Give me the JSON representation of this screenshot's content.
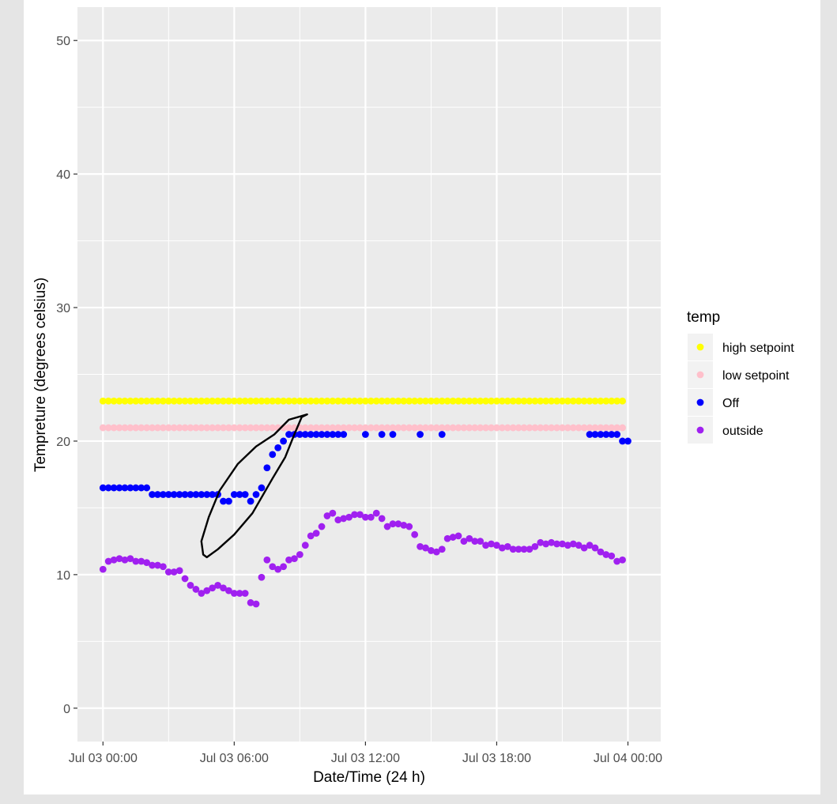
{
  "chart_data": {
    "type": "scatter",
    "title": "",
    "xlabel": "Date/Time (24 h)",
    "ylabel": "Tempreture (degrees celsius)",
    "x_axis_type": "datetime",
    "xlim": [
      "Jul 02 22:50",
      "Jul 04 01:30"
    ],
    "ylim": [
      -2.5,
      52.5
    ],
    "x_ticks": [
      {
        "at": "Jul 03 00:00",
        "label": "Jul 03 00:00"
      },
      {
        "at": "Jul 03 06:00",
        "label": "Jul 03 06:00"
      },
      {
        "at": "Jul 03 12:00",
        "label": "Jul 03 12:00"
      },
      {
        "at": "Jul 03 18:00",
        "label": "Jul 03 18:00"
      },
      {
        "at": "Jul 04 00:00",
        "label": "Jul 04 00:00"
      }
    ],
    "y_ticks": [
      0,
      10,
      20,
      30,
      40,
      50
    ],
    "grid": true,
    "legend": {
      "title": "temp",
      "position": "right"
    },
    "series": [
      {
        "name": "high setpoint",
        "color": "#ffff00",
        "constant_value": 23,
        "x_start": "Jul 03 00:00",
        "x_end": "Jul 03 23:45",
        "interval_min": 15
      },
      {
        "name": "low setpoint",
        "color": "#ffc0cb",
        "constant_value": 21,
        "x_start": "Jul 03 00:00",
        "x_end": "Jul 03 23:45",
        "interval_min": 15
      },
      {
        "name": "Off",
        "color": "#0000ff",
        "points": [
          [
            "Jul 03 00:00",
            16.5
          ],
          [
            "Jul 03 00:15",
            16.5
          ],
          [
            "Jul 03 00:30",
            16.5
          ],
          [
            "Jul 03 00:45",
            16.5
          ],
          [
            "Jul 03 01:00",
            16.5
          ],
          [
            "Jul 03 01:15",
            16.5
          ],
          [
            "Jul 03 01:30",
            16.5
          ],
          [
            "Jul 03 01:45",
            16.5
          ],
          [
            "Jul 03 02:00",
            16.5
          ],
          [
            "Jul 03 02:15",
            16.0
          ],
          [
            "Jul 03 02:30",
            16.0
          ],
          [
            "Jul 03 02:45",
            16.0
          ],
          [
            "Jul 03 03:00",
            16.0
          ],
          [
            "Jul 03 03:15",
            16.0
          ],
          [
            "Jul 03 03:30",
            16.0
          ],
          [
            "Jul 03 03:45",
            16.0
          ],
          [
            "Jul 03 04:00",
            16.0
          ],
          [
            "Jul 03 04:15",
            16.0
          ],
          [
            "Jul 03 04:30",
            16.0
          ],
          [
            "Jul 03 04:45",
            16.0
          ],
          [
            "Jul 03 05:00",
            16.0
          ],
          [
            "Jul 03 05:15",
            16.0
          ],
          [
            "Jul 03 05:30",
            15.5
          ],
          [
            "Jul 03 05:45",
            15.5
          ],
          [
            "Jul 03 06:00",
            16.0
          ],
          [
            "Jul 03 06:15",
            16.0
          ],
          [
            "Jul 03 06:30",
            16.0
          ],
          [
            "Jul 03 06:45",
            15.5
          ],
          [
            "Jul 03 07:00",
            16.0
          ],
          [
            "Jul 03 07:15",
            16.5
          ],
          [
            "Jul 03 07:30",
            18.0
          ],
          [
            "Jul 03 07:45",
            19.0
          ],
          [
            "Jul 03 08:00",
            19.5
          ],
          [
            "Jul 03 08:15",
            20.0
          ],
          [
            "Jul 03 08:30",
            20.5
          ],
          [
            "Jul 03 08:45",
            20.5
          ],
          [
            "Jul 03 09:00",
            20.5
          ],
          [
            "Jul 03 09:15",
            20.5
          ],
          [
            "Jul 03 09:30",
            20.5
          ],
          [
            "Jul 03 09:45",
            20.5
          ],
          [
            "Jul 03 10:00",
            20.5
          ],
          [
            "Jul 03 10:15",
            20.5
          ],
          [
            "Jul 03 10:30",
            20.5
          ],
          [
            "Jul 03 10:45",
            20.5
          ],
          [
            "Jul 03 11:00",
            20.5
          ],
          [
            "Jul 03 12:00",
            20.5
          ],
          [
            "Jul 03 12:45",
            20.5
          ],
          [
            "Jul 03 13:15",
            20.5
          ],
          [
            "Jul 03 14:30",
            20.5
          ],
          [
            "Jul 03 15:30",
            20.5
          ],
          [
            "Jul 03 22:15",
            20.5
          ],
          [
            "Jul 03 22:30",
            20.5
          ],
          [
            "Jul 03 22:45",
            20.5
          ],
          [
            "Jul 03 23:00",
            20.5
          ],
          [
            "Jul 03 23:15",
            20.5
          ],
          [
            "Jul 03 23:30",
            20.5
          ],
          [
            "Jul 03 23:45",
            20.0
          ],
          [
            "Jul 04 00:00",
            20.0
          ]
        ]
      },
      {
        "name": "outside",
        "color": "#a020f0",
        "points": [
          [
            "Jul 03 00:00",
            10.4
          ],
          [
            "Jul 03 00:15",
            11.0
          ],
          [
            "Jul 03 00:30",
            11.1
          ],
          [
            "Jul 03 00:45",
            11.2
          ],
          [
            "Jul 03 01:00",
            11.1
          ],
          [
            "Jul 03 01:15",
            11.2
          ],
          [
            "Jul 03 01:30",
            11.0
          ],
          [
            "Jul 03 01:45",
            11.0
          ],
          [
            "Jul 03 02:00",
            10.9
          ],
          [
            "Jul 03 02:15",
            10.7
          ],
          [
            "Jul 03 02:30",
            10.7
          ],
          [
            "Jul 03 02:45",
            10.6
          ],
          [
            "Jul 03 03:00",
            10.2
          ],
          [
            "Jul 03 03:15",
            10.2
          ],
          [
            "Jul 03 03:30",
            10.3
          ],
          [
            "Jul 03 03:45",
            9.7
          ],
          [
            "Jul 03 04:00",
            9.2
          ],
          [
            "Jul 03 04:15",
            8.9
          ],
          [
            "Jul 03 04:30",
            8.6
          ],
          [
            "Jul 03 04:45",
            8.8
          ],
          [
            "Jul 03 05:00",
            9.0
          ],
          [
            "Jul 03 05:15",
            9.2
          ],
          [
            "Jul 03 05:30",
            9.0
          ],
          [
            "Jul 03 05:45",
            8.8
          ],
          [
            "Jul 03 06:00",
            8.6
          ],
          [
            "Jul 03 06:15",
            8.6
          ],
          [
            "Jul 03 06:30",
            8.6
          ],
          [
            "Jul 03 06:45",
            7.9
          ],
          [
            "Jul 03 07:00",
            7.8
          ],
          [
            "Jul 03 07:15",
            9.8
          ],
          [
            "Jul 03 07:30",
            11.1
          ],
          [
            "Jul 03 07:45",
            10.6
          ],
          [
            "Jul 03 08:00",
            10.4
          ],
          [
            "Jul 03 08:15",
            10.6
          ],
          [
            "Jul 03 08:30",
            11.1
          ],
          [
            "Jul 03 08:45",
            11.2
          ],
          [
            "Jul 03 09:00",
            11.5
          ],
          [
            "Jul 03 09:15",
            12.2
          ],
          [
            "Jul 03 09:30",
            12.9
          ],
          [
            "Jul 03 09:45",
            13.1
          ],
          [
            "Jul 03 10:00",
            13.6
          ],
          [
            "Jul 03 10:15",
            14.4
          ],
          [
            "Jul 03 10:30",
            14.6
          ],
          [
            "Jul 03 10:45",
            14.1
          ],
          [
            "Jul 03 11:00",
            14.2
          ],
          [
            "Jul 03 11:15",
            14.3
          ],
          [
            "Jul 03 11:30",
            14.5
          ],
          [
            "Jul 03 11:45",
            14.5
          ],
          [
            "Jul 03 12:00",
            14.3
          ],
          [
            "Jul 03 12:15",
            14.3
          ],
          [
            "Jul 03 12:30",
            14.6
          ],
          [
            "Jul 03 12:45",
            14.2
          ],
          [
            "Jul 03 13:00",
            13.6
          ],
          [
            "Jul 03 13:15",
            13.8
          ],
          [
            "Jul 03 13:30",
            13.8
          ],
          [
            "Jul 03 13:45",
            13.7
          ],
          [
            "Jul 03 14:00",
            13.6
          ],
          [
            "Jul 03 14:15",
            13.0
          ],
          [
            "Jul 03 14:30",
            12.1
          ],
          [
            "Jul 03 14:45",
            12.0
          ],
          [
            "Jul 03 15:00",
            11.8
          ],
          [
            "Jul 03 15:15",
            11.7
          ],
          [
            "Jul 03 15:30",
            11.9
          ],
          [
            "Jul 03 15:45",
            12.7
          ],
          [
            "Jul 03 16:00",
            12.8
          ],
          [
            "Jul 03 16:15",
            12.9
          ],
          [
            "Jul 03 16:30",
            12.5
          ],
          [
            "Jul 03 16:45",
            12.7
          ],
          [
            "Jul 03 17:00",
            12.5
          ],
          [
            "Jul 03 17:15",
            12.5
          ],
          [
            "Jul 03 17:30",
            12.2
          ],
          [
            "Jul 03 17:45",
            12.3
          ],
          [
            "Jul 03 18:00",
            12.2
          ],
          [
            "Jul 03 18:15",
            12.0
          ],
          [
            "Jul 03 18:30",
            12.1
          ],
          [
            "Jul 03 18:45",
            11.9
          ],
          [
            "Jul 03 19:00",
            11.9
          ],
          [
            "Jul 03 19:15",
            11.9
          ],
          [
            "Jul 03 19:30",
            11.9
          ],
          [
            "Jul 03 19:45",
            12.1
          ],
          [
            "Jul 03 20:00",
            12.4
          ],
          [
            "Jul 03 20:15",
            12.3
          ],
          [
            "Jul 03 20:30",
            12.4
          ],
          [
            "Jul 03 20:45",
            12.3
          ],
          [
            "Jul 03 21:00",
            12.3
          ],
          [
            "Jul 03 21:15",
            12.2
          ],
          [
            "Jul 03 21:30",
            12.3
          ],
          [
            "Jul 03 21:45",
            12.2
          ],
          [
            "Jul 03 22:00",
            12.0
          ],
          [
            "Jul 03 22:15",
            12.2
          ],
          [
            "Jul 03 22:30",
            12.0
          ],
          [
            "Jul 03 22:45",
            11.7
          ],
          [
            "Jul 03 23:00",
            11.5
          ],
          [
            "Jul 03 23:15",
            11.4
          ],
          [
            "Jul 03 23:30",
            11.0
          ],
          [
            "Jul 03 23:45",
            11.1
          ]
        ]
      }
    ],
    "annotations": [
      {
        "type": "hand-drawn-loop",
        "color": "#000000",
        "points": [
          [
            "Jul 03 04:45",
            11.3
          ],
          [
            "Jul 03 05:15",
            11.9
          ],
          [
            "Jul 03 06:00",
            13.0
          ],
          [
            "Jul 03 06:50",
            14.6
          ],
          [
            "Jul 03 07:45",
            17.2
          ],
          [
            "Jul 03 08:20",
            18.8
          ],
          [
            "Jul 03 08:45",
            20.5
          ],
          [
            "Jul 03 09:05",
            21.8
          ],
          [
            "Jul 03 09:20",
            22.0
          ],
          [
            "Jul 03 08:30",
            21.6
          ],
          [
            "Jul 03 07:50",
            20.5
          ],
          [
            "Jul 03 07:00",
            19.6
          ],
          [
            "Jul 03 06:10",
            18.3
          ],
          [
            "Jul 03 05:20",
            16.3
          ],
          [
            "Jul 03 04:50",
            14.3
          ],
          [
            "Jul 03 04:30",
            12.5
          ],
          [
            "Jul 03 04:35",
            11.5
          ],
          [
            "Jul 03 04:45",
            11.3
          ]
        ]
      }
    ]
  }
}
